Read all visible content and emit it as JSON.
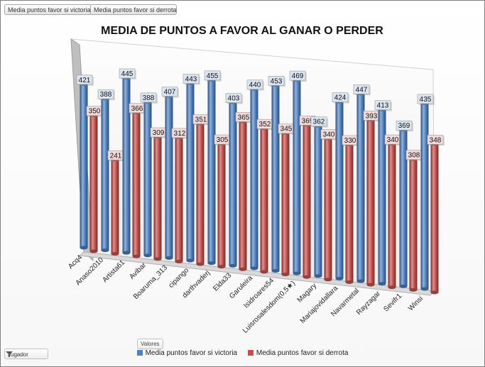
{
  "filter_buttons": [
    "Media puntos favor si victoria",
    "Media puntos favor si derrota"
  ],
  "valores_label": "Valores",
  "jugador_label": "Jugador",
  "colors": {
    "victoria": "#4f81bd",
    "derrota": "#c0504d"
  },
  "chart_data": {
    "type": "bar",
    "title": "MEDIA DE PUNTOS A FAVOR AL GANAR O PERDER",
    "categories": [
      "Acq4",
      "Anaso2010",
      "Artista61",
      "Avibar",
      "Boaruma_313",
      "cipango",
      "darthvaderj",
      "Elda33",
      "Garuleira",
      "Isidroares54",
      "Luisrosalesdom(0,5★)",
      "Magary",
      "Mariajovidallara",
      "Navarmetal",
      "Rayzagar",
      "Sevifr1",
      "Winsi"
    ],
    "series": [
      {
        "name": "Media puntos favor si victoria",
        "values": [
          421,
          388,
          445,
          388,
          407,
          443,
          455,
          403,
          440,
          453,
          469,
          362,
          424,
          447,
          413,
          369,
          435
        ]
      },
      {
        "name": "Media puntos favor si derrota",
        "values": [
          350,
          241,
          366,
          309,
          312,
          351,
          305,
          365,
          352,
          345,
          369,
          340,
          330,
          393,
          340,
          308,
          348
        ]
      }
    ],
    "legend_position": "bottom"
  }
}
